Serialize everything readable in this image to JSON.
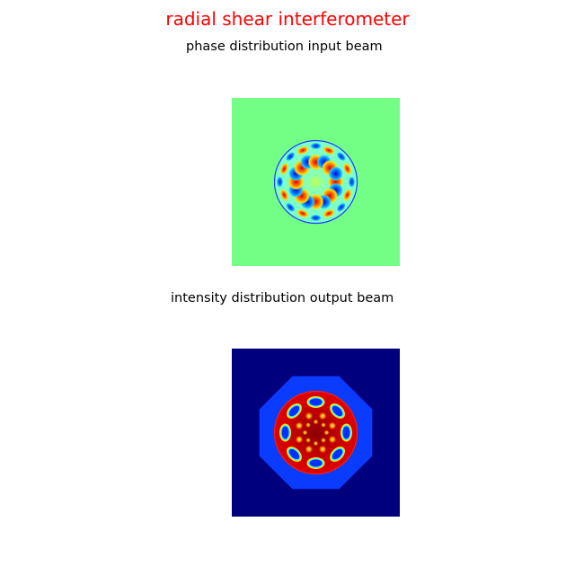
{
  "figure": {
    "title": "radial shear interferometer",
    "title_color": "#ff0000"
  },
  "panels": [
    {
      "title": "phase distribution input beam",
      "colormap": "jet",
      "background_color": "#73ff85",
      "pattern_symmetry": 8
    },
    {
      "title": "intensity distribution output beam",
      "colormap": "jet",
      "background_color": "#00007f",
      "halo_color": "#0a3cff",
      "pattern_symmetry": 8
    }
  ]
}
